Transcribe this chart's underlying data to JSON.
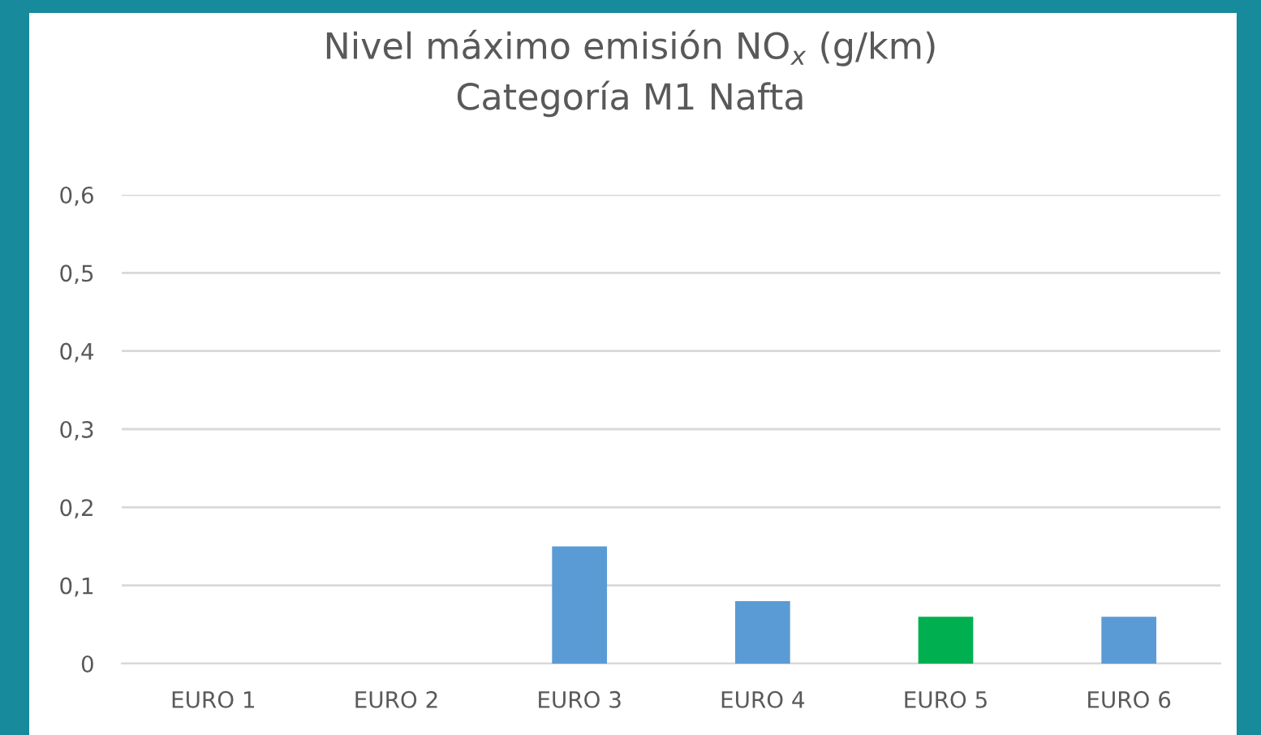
{
  "chart_data": {
    "type": "bar",
    "title": "Nivel máximo emisión NO$_{x}$ (g/km)\nCategoría M1 Nafta",
    "categories": [
      "EURO 1",
      "EURO 2",
      "EURO 3",
      "EURO 4",
      "EURO 5",
      "EURO 6"
    ],
    "values": [
      null,
      null,
      0.15,
      0.08,
      0.06,
      0.06
    ],
    "colors": [
      "#5b9bd5",
      "#5b9bd5",
      "#5b9bd5",
      "#5b9bd5",
      "#00b050",
      "#5b9bd5"
    ],
    "ylim": [
      0,
      0.6
    ],
    "yticks": [
      {
        "value": 0,
        "label": "0"
      },
      {
        "value": 0.1,
        "label": "0,1"
      },
      {
        "value": 0.2,
        "label": "0,2"
      },
      {
        "value": 0.3,
        "label": "0,3"
      },
      {
        "value": 0.4,
        "label": "0,4"
      },
      {
        "value": 0.5,
        "label": "0,5"
      },
      {
        "value": 0.6,
        "label": "0,6"
      }
    ],
    "grid": "y"
  }
}
